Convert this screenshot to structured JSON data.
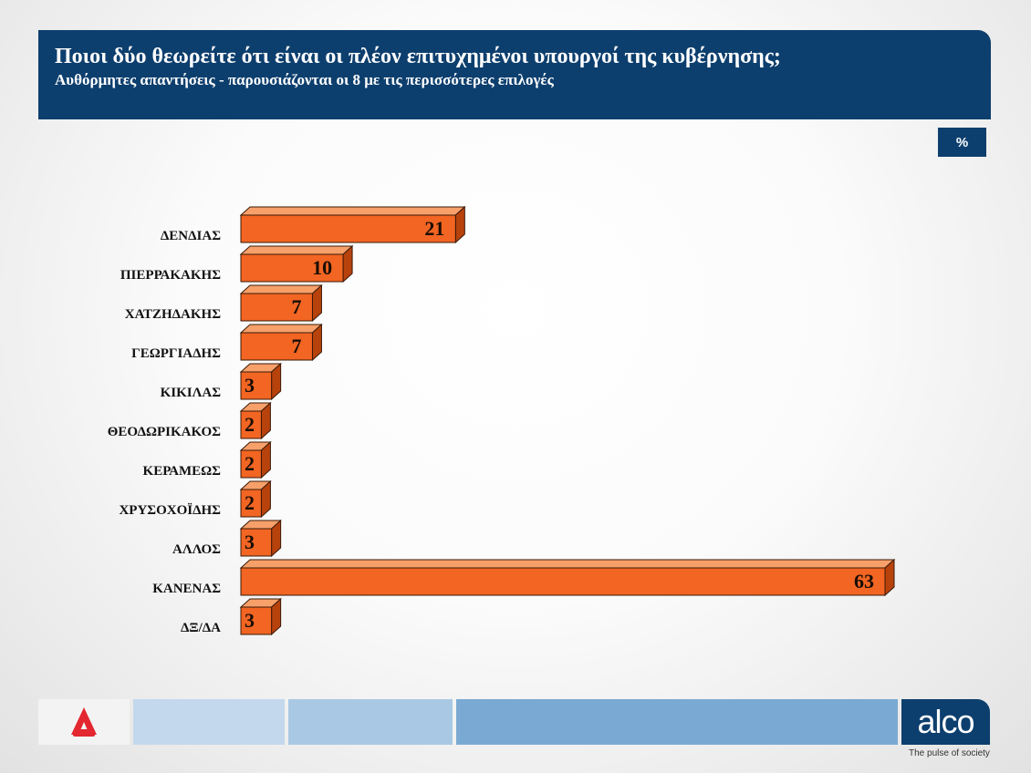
{
  "header": {
    "title": "Ποιοι δύο θεωρείτε ότι είναι οι πλέον επιτυχημένοι υπουργοί της κυβέρνησης;",
    "subtitle": "Αυθόρμητες απαντήσεις - παρουσιάζονται οι 8 με τις περισσότερες επιλογές"
  },
  "unit_badge": "%",
  "footer": {
    "brand_logo": "alco",
    "tagline": "The pulse of society",
    "news_logo_icon": "alpha-news-icon"
  },
  "colors": {
    "bar_front": "#f26522",
    "bar_top": "#f7a06a",
    "bar_side": "#b8420c",
    "header_bg": "#0d3f6e"
  },
  "chart_data": {
    "type": "bar",
    "orientation": "horizontal",
    "title": "Ποιοι δύο θεωρείτε ότι είναι οι πλέον επιτυχημένοι υπουργοί της κυβέρνησης;",
    "subtitle": "Αυθόρμητες απαντήσεις - παρουσιάζονται οι 8 με τις περισσότερες επιλογές",
    "categories": [
      "ΔΕΝΔΙΑΣ",
      "ΠΙΕΡΡΑΚΑΚΗΣ",
      "ΧΑΤΖΗΔΑΚΗΣ",
      "ΓΕΩΡΓΙΑΔΗΣ",
      "ΚΙΚΙΛΑΣ",
      "ΘΕΟΔΩΡΙΚΑΚΟΣ",
      "ΚΕΡΑΜΕΩΣ",
      "ΧΡΥΣΟΧΟΪΔΗΣ",
      "ΑΛΛΟΣ",
      "ΚΑΝΕΝΑΣ",
      "ΔΞ/ΔΑ"
    ],
    "values": [
      21,
      10,
      7,
      7,
      3,
      2,
      2,
      2,
      3,
      63,
      3
    ],
    "unit": "%",
    "xlim": [
      0,
      63
    ],
    "grid": false,
    "legend": "none"
  }
}
